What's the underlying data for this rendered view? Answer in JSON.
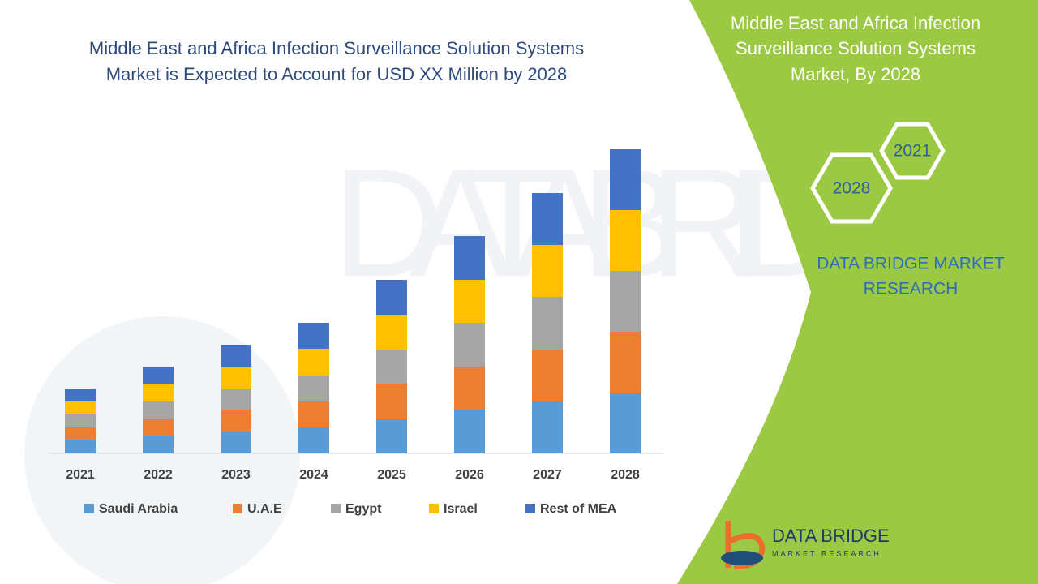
{
  "chart_data": {
    "type": "bar",
    "stacked": true,
    "title": [
      "Middle East and Africa Infection Surveillance Solution Systems",
      "Market is Expected to Account for USD XX Million by 2028"
    ],
    "categories": [
      "2021",
      "2022",
      "2023",
      "2024",
      "2025",
      "2026",
      "2027",
      "2028"
    ],
    "series": [
      {
        "name": "Saudi Arabia",
        "color": "#5b9bd5",
        "values": [
          16,
          21,
          27,
          32,
          43,
          54,
          64,
          75
        ]
      },
      {
        "name": "U.A.E",
        "color": "#ed7d31",
        "values": [
          16,
          22,
          27,
          32,
          43,
          53,
          64,
          75
        ]
      },
      {
        "name": "Egypt",
        "color": "#a5a5a5",
        "values": [
          16,
          21,
          26,
          32,
          42,
          54,
          65,
          75
        ]
      },
      {
        "name": "Israel",
        "color": "#ffc000",
        "values": [
          16,
          22,
          27,
          33,
          43,
          53,
          64,
          75
        ]
      },
      {
        "name": "Rest of MEA",
        "color": "#4472c4",
        "values": [
          16,
          21,
          27,
          32,
          43,
          54,
          64,
          75
        ]
      }
    ]
  },
  "panel": {
    "title": [
      "Middle East and Africa Infection",
      "Surveillance Solution Systems",
      "Market, By 2028"
    ],
    "hexagons": [
      "2028",
      "2021"
    ],
    "brand": [
      "DATA BRIDGE MARKET",
      "RESEARCH"
    ],
    "logo": {
      "name": "DATA BRIDGE",
      "tagline": "MARKET RESEARCH"
    }
  }
}
